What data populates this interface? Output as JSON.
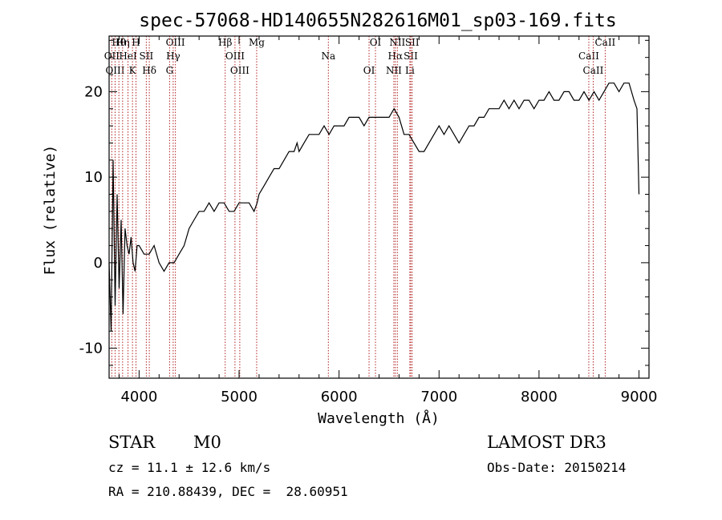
{
  "chart_data": {
    "type": "line",
    "title": "spec-57068-HD140655N282616M01_sp03-169.fits",
    "xlabel": "Wavelength (Å)",
    "ylabel": "Flux (relative)",
    "xlim": [
      3700,
      9100
    ],
    "ylim": [
      -13.5,
      26.5
    ],
    "xticks": [
      4000,
      5000,
      6000,
      7000,
      8000,
      9000
    ],
    "yticks": [
      -10,
      0,
      10,
      20
    ],
    "series": [
      {
        "name": "spectrum",
        "x": [
          3700,
          3720,
          3740,
          3760,
          3780,
          3800,
          3820,
          3840,
          3860,
          3880,
          3900,
          3920,
          3940,
          3960,
          3980,
          4000,
          4050,
          4100,
          4150,
          4200,
          4250,
          4300,
          4350,
          4400,
          4450,
          4500,
          4550,
          4600,
          4650,
          4700,
          4750,
          4800,
          4850,
          4900,
          4950,
          5000,
          5050,
          5100,
          5150,
          5180,
          5200,
          5250,
          5300,
          5350,
          5400,
          5450,
          5500,
          5550,
          5580,
          5600,
          5650,
          5700,
          5750,
          5800,
          5850,
          5900,
          5950,
          6000,
          6050,
          6100,
          6150,
          6200,
          6250,
          6300,
          6350,
          6400,
          6450,
          6500,
          6550,
          6600,
          6650,
          6700,
          6750,
          6800,
          6850,
          6900,
          6950,
          7000,
          7050,
          7100,
          7150,
          7200,
          7250,
          7300,
          7350,
          7400,
          7450,
          7500,
          7550,
          7600,
          7650,
          7700,
          7750,
          7800,
          7850,
          7900,
          7950,
          8000,
          8050,
          8100,
          8150,
          8200,
          8250,
          8300,
          8350,
          8400,
          8450,
          8500,
          8550,
          8600,
          8650,
          8700,
          8750,
          8800,
          8850,
          8900,
          8950,
          8980,
          9000
        ],
        "y": [
          0,
          -8,
          12,
          -5,
          8,
          -3,
          5,
          -6,
          4,
          2,
          1,
          3,
          0,
          -1,
          2,
          2,
          1,
          1,
          2,
          0,
          -1,
          0,
          0,
          1,
          2,
          4,
          5,
          6,
          6,
          7,
          6,
          7,
          7,
          6,
          6,
          7,
          7,
          7,
          6,
          7,
          8,
          9,
          10,
          11,
          11,
          12,
          13,
          13,
          14,
          13,
          14,
          15,
          15,
          15,
          16,
          15,
          16,
          16,
          16,
          17,
          17,
          17,
          16,
          17,
          17,
          17,
          17,
          17,
          18,
          17,
          15,
          15,
          14,
          13,
          13,
          14,
          15,
          16,
          15,
          16,
          15,
          14,
          15,
          16,
          16,
          17,
          17,
          18,
          18,
          18,
          19,
          18,
          19,
          18,
          19,
          19,
          18,
          19,
          19,
          20,
          19,
          19,
          20,
          20,
          19,
          19,
          20,
          19,
          20,
          19,
          20,
          21,
          21,
          20,
          21,
          21,
          19,
          18,
          8
        ]
      }
    ],
    "lines": [
      {
        "label": "Hθ",
        "x": 3798
      },
      {
        "label": "OII",
        "x": 3727
      },
      {
        "label": "OIII",
        "x": 3760
      },
      {
        "label": "Hη",
        "x": 3835
      },
      {
        "label": "HeI",
        "x": 3889
      },
      {
        "label": "K",
        "x": 3934
      },
      {
        "label": "H",
        "x": 3969
      },
      {
        "label": "SII",
        "x": 4072
      },
      {
        "label": "Hδ",
        "x": 4102
      },
      {
        "label": "OIII",
        "x": 4363
      },
      {
        "label": "Hγ",
        "x": 4341
      },
      {
        "label": "G",
        "x": 4305
      },
      {
        "label": "Hβ",
        "x": 4861
      },
      {
        "label": "OIII",
        "x": 4959
      },
      {
        "label": "OIII",
        "x": 5007
      },
      {
        "label": "Mg",
        "x": 5176
      },
      {
        "label": "Na",
        "x": 5893
      },
      {
        "label": "OI",
        "x": 6300
      },
      {
        "label": "OI",
        "x": 6364
      },
      {
        "label": "Hα",
        "x": 6563
      },
      {
        "label": "NII",
        "x": 6548
      },
      {
        "label": "NII",
        "x": 6583
      },
      {
        "label": "SII",
        "x": 6717
      },
      {
        "label": "Li",
        "x": 6708
      },
      {
        "label": "SII",
        "x": 6731
      },
      {
        "label": "CaII",
        "x": 8498
      },
      {
        "label": "CaII",
        "x": 8542
      },
      {
        "label": "CaII",
        "x": 8662
      }
    ]
  },
  "info": {
    "class": "STAR",
    "subclass": "M0",
    "cz": "cz = 11.1 ± 12.6 km/s",
    "radec": "RA = 210.88439, DEC =  28.60951",
    "survey": "LAMOST DR3",
    "obsdate": "Obs-Date: 20150214"
  }
}
